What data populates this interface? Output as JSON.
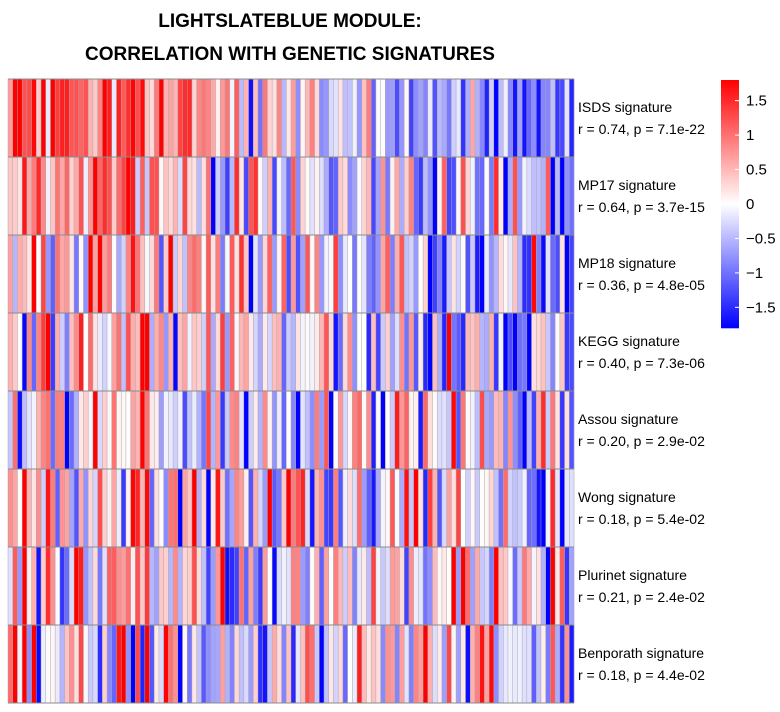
{
  "chart_data": {
    "type": "heatmap",
    "title": [
      "LIGHTSLATEBLUE MODULE:",
      "CORRELATION WITH GENETIC SIGNATURES"
    ],
    "rows": [
      {
        "name": "ISDS signature",
        "stat": "r = 0.74, p = 7.1e-22",
        "r": 0.74
      },
      {
        "name": "MP17 signature",
        "stat": "r = 0.64, p = 3.7e-15",
        "r": 0.64
      },
      {
        "name": "MP18 signature",
        "stat": "r = 0.36, p = 4.8e-05",
        "r": 0.36
      },
      {
        "name": "KEGG signature",
        "stat": "r = 0.40, p = 7.3e-06",
        "r": 0.4
      },
      {
        "name": "Assou signature",
        "stat": "r = 0.20, p = 2.9e-02",
        "r": 0.2
      },
      {
        "name": "Wong signature",
        "stat": "r = 0.18, p = 5.4e-02",
        "r": 0.18
      },
      {
        "name": "Plurinet signature",
        "stat": "r = 0.21, p = 2.4e-02",
        "r": 0.21
      },
      {
        "name": "Benporath signature",
        "stat": "r = 0.18, p = 4.4e-02",
        "r": 0.18
      }
    ],
    "n_columns": 120,
    "legend": {
      "ticks": [
        1.5,
        1,
        0.5,
        0,
        -0.5,
        -1,
        -1.5
      ],
      "tick_labels": [
        "1.5",
        "1",
        "0.5",
        "0",
        "−0.5",
        "−1",
        "−1.5"
      ],
      "range": [
        -1.8,
        1.8
      ],
      "colors": {
        "high": "#ff0000",
        "mid": "#ffffff",
        "low": "#0000ff"
      }
    }
  }
}
